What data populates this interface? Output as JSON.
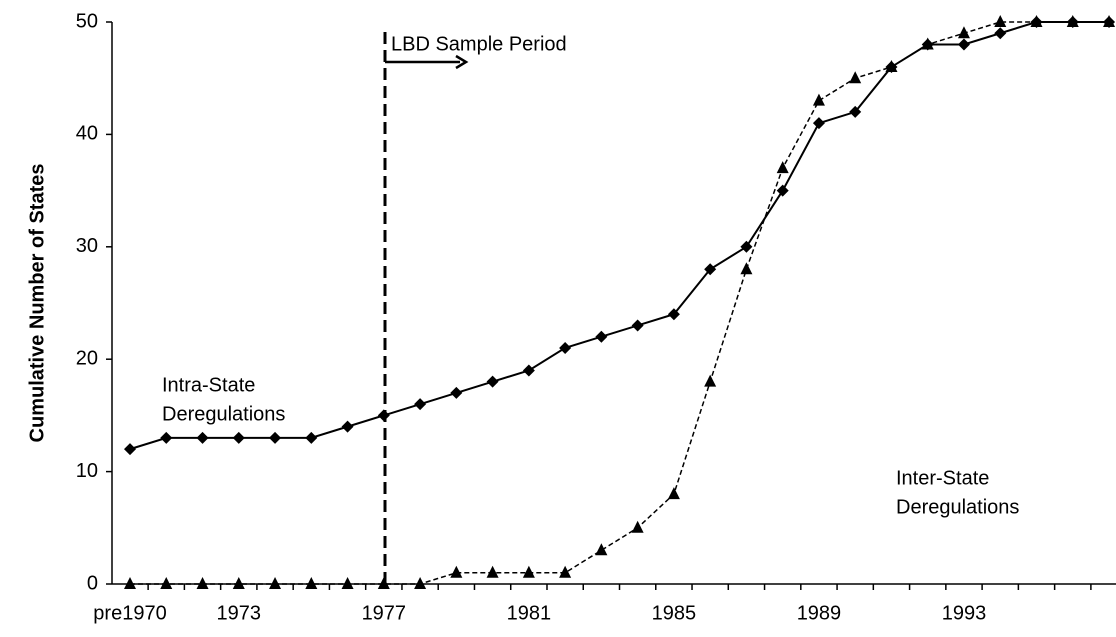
{
  "chart_data": {
    "type": "line",
    "y_label": "Cumulative Number of States",
    "categories": [
      "pre1970",
      null,
      null,
      "1973",
      null,
      null,
      null,
      "1977",
      null,
      null,
      null,
      "1981",
      null,
      null,
      null,
      "1985",
      null,
      null,
      null,
      "1989",
      null,
      null,
      null,
      "1993",
      null,
      null,
      null,
      null
    ],
    "series": [
      {
        "name": "Intra-State Deregulations",
        "label_lines": [
          "Intra-State",
          "Deregulations"
        ],
        "color": "#000000",
        "marker": "diamond",
        "dashed": false,
        "values": [
          12,
          13,
          13,
          13,
          13,
          13,
          14,
          15,
          16,
          17,
          18,
          19,
          21,
          22,
          23,
          24,
          28,
          30,
          35,
          41,
          42,
          46,
          48,
          48,
          49,
          50,
          50,
          50
        ]
      },
      {
        "name": "Inter-State Deregulations",
        "label_lines": [
          "Inter-State",
          "Deregulations"
        ],
        "color": "#000000",
        "marker": "triangle",
        "dashed": true,
        "values": [
          0,
          0,
          0,
          0,
          0,
          0,
          0,
          0,
          0,
          1,
          1,
          1,
          1,
          3,
          5,
          8,
          18,
          28,
          37,
          43,
          45,
          46,
          48,
          49,
          50,
          50,
          50,
          50
        ]
      }
    ],
    "annotation": "LBD Sample  Period",
    "ylim": [
      0,
      50
    ],
    "yticks": [
      0,
      10,
      20,
      30,
      40,
      50
    ],
    "grid": false
  }
}
